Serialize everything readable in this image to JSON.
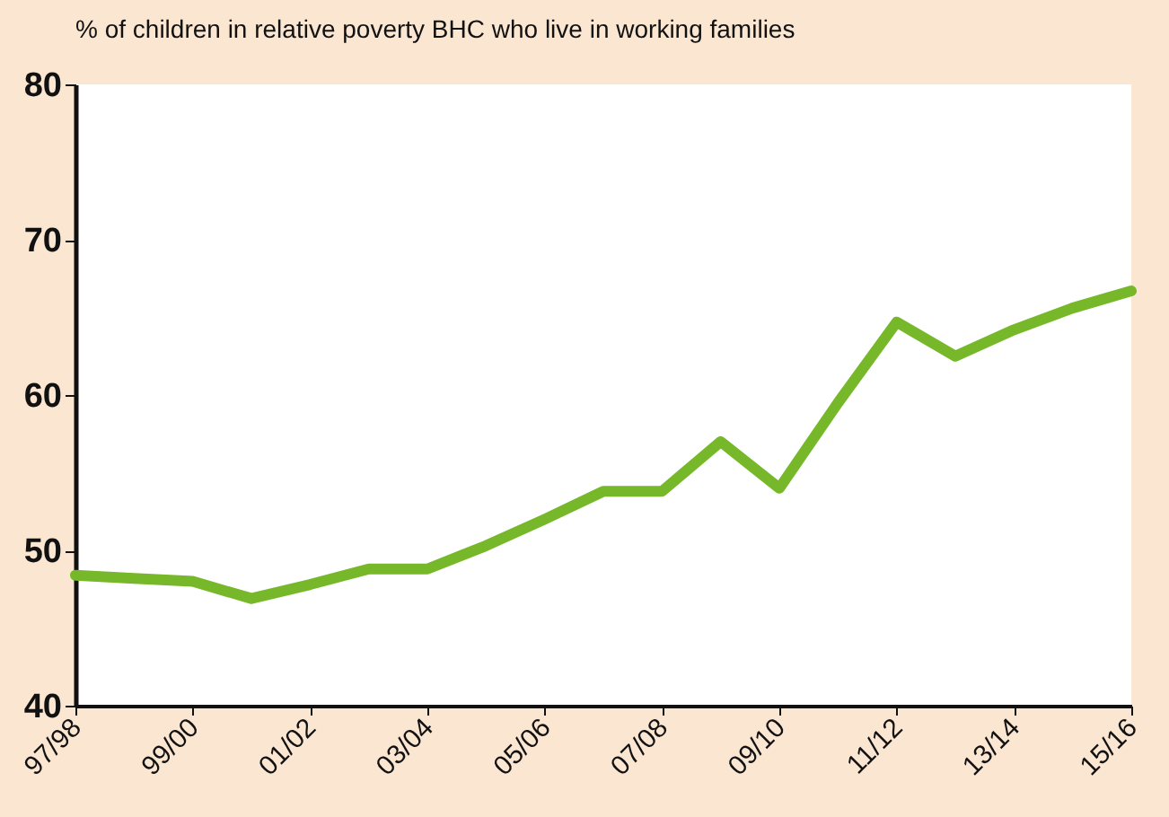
{
  "chart_data": {
    "type": "line",
    "title": "% of children in relative poverty BHC who live in working families",
    "categories": [
      "97/98",
      null,
      "99/00",
      null,
      "01/02",
      null,
      "03/04",
      null,
      "05/06",
      null,
      "07/08",
      null,
      "09/10",
      null,
      "11/12",
      null,
      "13/14",
      null,
      "15/16"
    ],
    "series": [
      {
        "color": "#76b82a",
        "values": [
          48.4,
          48.2,
          48.0,
          46.9,
          47.8,
          48.8,
          48.8,
          50.3,
          52.0,
          53.8,
          53.8,
          57.0,
          54.0,
          59.5,
          64.7,
          62.5,
          64.2,
          65.6,
          66.7
        ]
      }
    ],
    "ylim": [
      40,
      80
    ],
    "yticks": [
      40,
      50,
      60,
      70,
      80
    ],
    "grid": false,
    "marker": "none",
    "line_style": "solid"
  }
}
